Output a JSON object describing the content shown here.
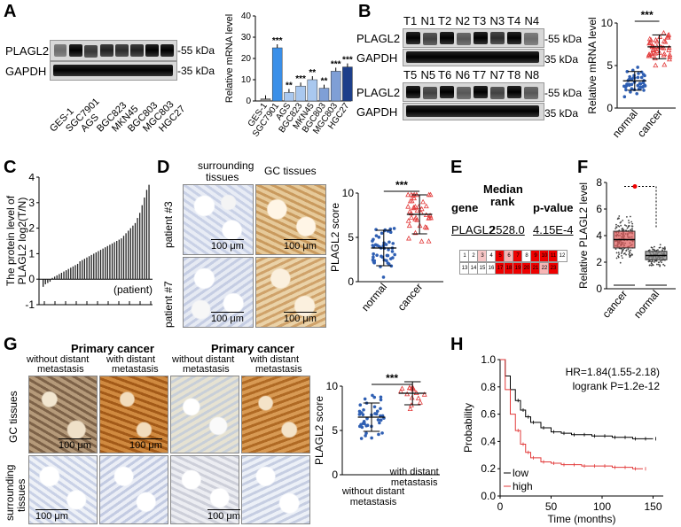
{
  "panels": {
    "A": "A",
    "B": "B",
    "C": "C",
    "D": "D",
    "E": "E",
    "F": "F",
    "G": "G",
    "H": "H"
  },
  "colors": {
    "cancer": "#e23a3a",
    "normal": "#2f5fb3",
    "bar_blue": "#3a8fe8",
    "bar_light": "#a9c8ef",
    "bar_dark": "#1d3f8a"
  },
  "panelA": {
    "row1": "PLAGL2",
    "row2": "GAPDH",
    "kda1": "-55 kDa",
    "kda2": "-35 kDa",
    "lanes": [
      "GES-1",
      "SGC7901",
      "AGS",
      "BGC823",
      "MKN45",
      "BGC803",
      "MGC803",
      "HGC27"
    ],
    "chart_data": {
      "type": "bar",
      "ylabel": "Relative mRNA level",
      "ylim": [
        0,
        40
      ],
      "yticks": [
        "0",
        "10",
        "20",
        "30",
        "40"
      ],
      "categories": [
        "GES-1",
        "SGC7901",
        "AGS",
        "BGC823",
        "MKN45",
        "BGC803",
        "MGC803",
        "HGC27"
      ],
      "values": [
        1,
        25,
        4,
        7,
        10,
        6,
        14,
        16
      ],
      "sig": [
        "",
        "***",
        "**",
        "***",
        "**",
        "**",
        "***",
        "***"
      ]
    }
  },
  "panelB": {
    "row1": "PLAGL2",
    "row2": "GAPDH",
    "kda1": "-55 kDa",
    "kda2": "35 kDa",
    "lanes_top": [
      "T1",
      "N1",
      "T2",
      "N2",
      "T3",
      "N3",
      "T4",
      "N4"
    ],
    "lanes_bot": [
      "T5",
      "N5",
      "T6",
      "N6",
      "T7",
      "N7",
      "T8",
      "N8"
    ],
    "chart_data": {
      "type": "scatter",
      "ylabel": "Relative mRNA level",
      "ylim": [
        0,
        10
      ],
      "yticks": [
        "0",
        "5",
        "10"
      ],
      "categories": [
        "normal",
        "cancer"
      ],
      "means": [
        3.2,
        7.2
      ],
      "sd": [
        1.1,
        1.4
      ],
      "sig": "***"
    }
  },
  "panelC": {
    "ylabel1": "The protein level of",
    "ylabel2": "PLAGL2 log2(T/N)",
    "note": "(patient)",
    "chart_data": {
      "type": "bar",
      "ylim": [
        -1,
        4
      ],
      "yticks": [
        "-1",
        "0",
        "1",
        "2",
        "3",
        "4"
      ],
      "values": [
        -0.3,
        -0.2,
        -0.15,
        -0.1,
        0.05,
        0.1,
        0.15,
        0.2,
        0.25,
        0.3,
        0.35,
        0.4,
        0.45,
        0.5,
        0.55,
        0.6,
        0.7,
        0.75,
        0.8,
        0.85,
        0.9,
        0.95,
        1.0,
        1.05,
        1.1,
        1.15,
        1.2,
        1.25,
        1.3,
        1.35,
        1.4,
        1.45,
        1.5,
        1.55,
        1.6,
        1.7,
        1.8,
        1.9,
        2.0,
        2.1,
        2.2,
        2.4,
        2.6,
        2.9,
        3.2,
        3.5,
        3.7
      ]
    }
  },
  "panelD": {
    "col1": "surrounding",
    "col1b": "tissues",
    "col2": "GC tissues",
    "row1": "patient #3",
    "row2": "patient #7",
    "scale": "100 μm",
    "chart_data": {
      "type": "scatter",
      "ylabel": "PLAGL2 score",
      "ylim": [
        0,
        10
      ],
      "yticks": [
        "0",
        "5",
        "10"
      ],
      "categories": [
        "normal",
        "cancer"
      ],
      "means": [
        3.8,
        7.6
      ],
      "sd": [
        2.0,
        2.2
      ],
      "sig": "***"
    }
  },
  "panelE": {
    "h_gene": "gene",
    "h_median1": "Median",
    "h_median2": "rank",
    "h_p": "p-value",
    "gene": "PLAGL2",
    "rank": "2528.0",
    "p": "4.15E-4",
    "cells_top": [
      "1",
      "2",
      "3",
      "4",
      "5",
      "6",
      "7",
      "8",
      "9",
      "10",
      "11",
      "12"
    ],
    "cells_bot": [
      "13",
      "14",
      "15",
      "16",
      "17",
      "18",
      "19",
      "20",
      "21",
      "22",
      "23"
    ]
  },
  "panelF": {
    "ylabel": "Relative PLAGL2 level",
    "chart_data": {
      "type": "box",
      "ylim": [
        0,
        8
      ],
      "yticks": [
        "0",
        "2",
        "4",
        "6",
        "8"
      ],
      "categories": [
        "cancer",
        "normal"
      ],
      "medians": [
        3.7,
        2.5
      ]
    }
  },
  "panelG": {
    "title1": "Primary cancer",
    "title2": "Primary cancer",
    "sub_without": "without distant",
    "sub_meta": "metastasis",
    "sub_with": "with distant",
    "row1": "GC tissues",
    "row2": "surrounding",
    "row2b": "tissues",
    "scale": "100 μm",
    "chart_data": {
      "type": "scatter",
      "ylabel": "PLAGL2 score",
      "ylim": [
        0,
        10
      ],
      "yticks": [
        "0",
        "5",
        "10"
      ],
      "categories": [
        "without distant metastasis",
        "with distant metastasis"
      ],
      "cat1a": "without distant",
      "cat1b": "metastasis",
      "cat2a": "with distant",
      "cat2b": "metastasis",
      "means": [
        6.5,
        9.2
      ],
      "sd": [
        1.6,
        1.3
      ],
      "sig": "***"
    }
  },
  "panelH": {
    "hr": "HR=1.84(1.55-2.18)",
    "logrank": "logrank P=1.2e-12",
    "legend_low": "low",
    "legend_high": "high",
    "chart_data": {
      "type": "line",
      "xlabel": "Time (months)",
      "ylabel": "Probability",
      "xlim": [
        0,
        160
      ],
      "ylim": [
        0,
        1
      ],
      "xticks": [
        "0",
        "50",
        "100",
        "150"
      ],
      "yticks": [
        "0.0",
        "0.2",
        "0.4",
        "0.6",
        "0.8",
        "1.0"
      ],
      "series": [
        {
          "name": "low",
          "x": [
            0,
            5,
            10,
            15,
            20,
            25,
            30,
            40,
            50,
            60,
            70,
            80,
            90,
            100,
            110,
            120,
            130,
            140,
            150
          ],
          "y": [
            1,
            0.88,
            0.78,
            0.7,
            0.63,
            0.58,
            0.54,
            0.5,
            0.47,
            0.46,
            0.45,
            0.45,
            0.44,
            0.44,
            0.43,
            0.43,
            0.42,
            0.42,
            0.42
          ]
        },
        {
          "name": "high",
          "x": [
            0,
            5,
            10,
            15,
            20,
            25,
            30,
            40,
            50,
            60,
            70,
            80,
            90,
            100,
            110,
            120,
            130,
            140
          ],
          "y": [
            1,
            0.78,
            0.6,
            0.48,
            0.38,
            0.32,
            0.28,
            0.25,
            0.24,
            0.23,
            0.23,
            0.22,
            0.22,
            0.22,
            0.21,
            0.21,
            0.2,
            0.2
          ]
        }
      ]
    }
  }
}
